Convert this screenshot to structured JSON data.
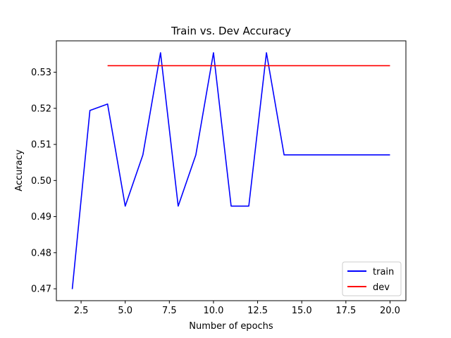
{
  "chart_data": {
    "type": "line",
    "title": "Train vs. Dev Accuracy",
    "xlabel": "Number of epochs",
    "ylabel": "Accuracy",
    "xlim": [
      1.1,
      20.9
    ],
    "ylim": [
      0.4667,
      0.5387
    ],
    "xticks": [
      2.5,
      5.0,
      7.5,
      10.0,
      12.5,
      15.0,
      17.5,
      20.0
    ],
    "xtick_labels": [
      "2.5",
      "5.0",
      "7.5",
      "10.0",
      "12.5",
      "15.0",
      "17.5",
      "20.0"
    ],
    "yticks": [
      0.47,
      0.48,
      0.49,
      0.5,
      0.51,
      0.52,
      0.53
    ],
    "ytick_labels": [
      "0.47",
      "0.48",
      "0.49",
      "0.50",
      "0.51",
      "0.52",
      "0.53"
    ],
    "grid": false,
    "legend_position": "lower-right",
    "series": [
      {
        "name": "train",
        "color": "#0000ff",
        "x": [
          2,
          3,
          4,
          5,
          6,
          7,
          8,
          9,
          10,
          11,
          12,
          13,
          14,
          15,
          16,
          17,
          18,
          19,
          20
        ],
        "values": [
          0.4699,
          0.5194,
          0.5212,
          0.4929,
          0.5071,
          0.5354,
          0.4929,
          0.5071,
          0.5354,
          0.4929,
          0.4929,
          0.5354,
          0.5071,
          0.5071,
          0.5071,
          0.5071,
          0.5071,
          0.5071,
          0.5071
        ]
      },
      {
        "name": "dev",
        "color": "#ff0000",
        "x": [
          4,
          20
        ],
        "values": [
          0.5318,
          0.5318
        ]
      }
    ]
  }
}
